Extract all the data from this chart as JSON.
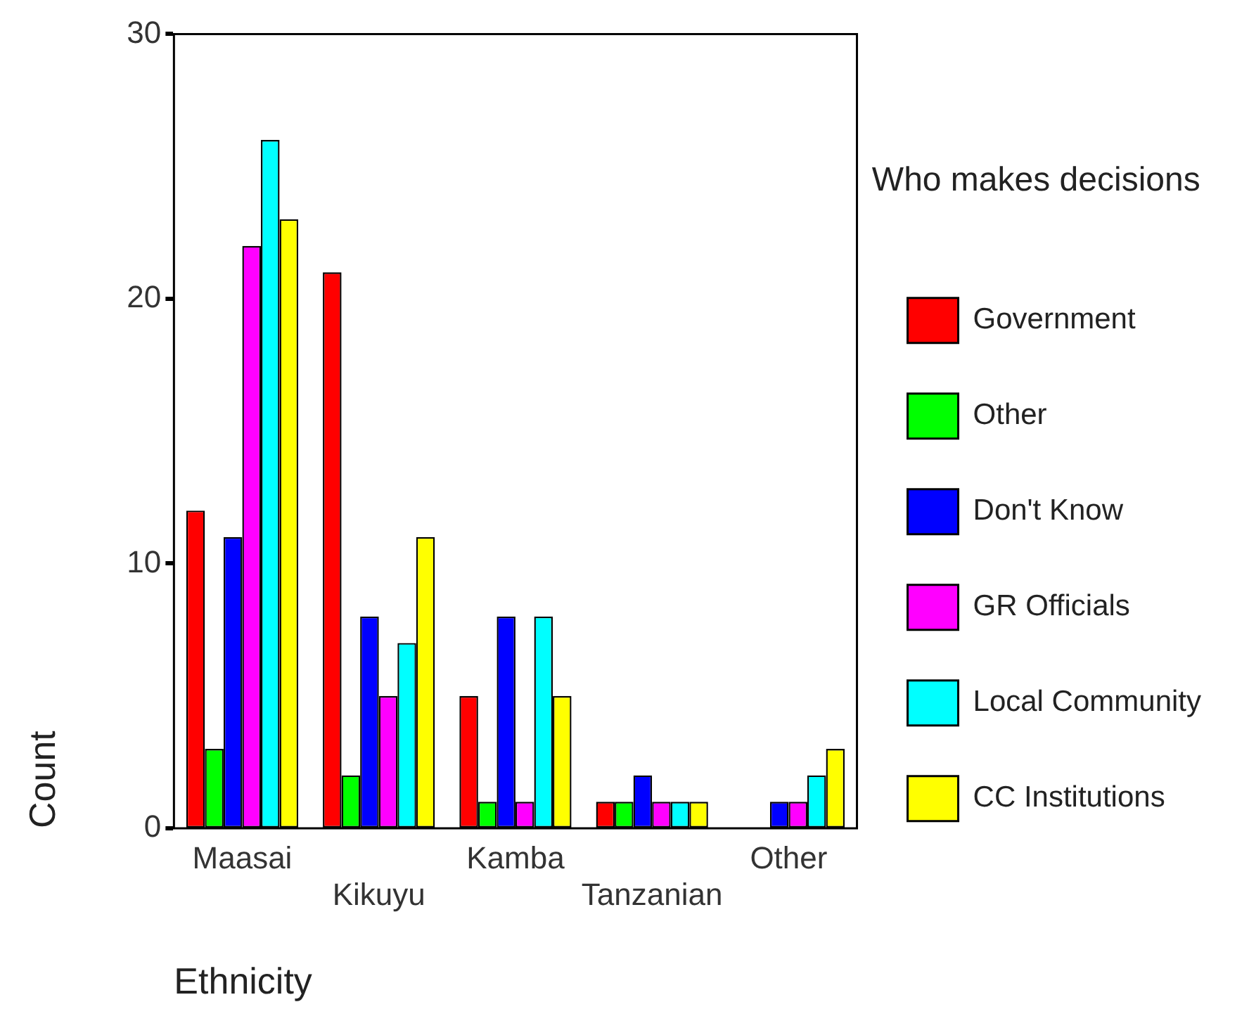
{
  "chart_data": {
    "type": "bar",
    "xlabel": "Ethnicity",
    "ylabel": "Count",
    "legend_title": "Who makes decisions",
    "categories": [
      "Maasai",
      "Kikuyu",
      "Kamba",
      "Tanzanian",
      "Other"
    ],
    "series": [
      {
        "name": "Government",
        "color": "#ff0000",
        "values": [
          12,
          21,
          5,
          1,
          0
        ]
      },
      {
        "name": "Other",
        "color": "#00ff00",
        "values": [
          3,
          2,
          1,
          1,
          0
        ]
      },
      {
        "name": "Don't Know",
        "color": "#0000ff",
        "values": [
          11,
          8,
          8,
          2,
          1
        ]
      },
      {
        "name": "GR Officials",
        "color": "#ff00ff",
        "values": [
          22,
          5,
          1,
          1,
          1
        ]
      },
      {
        "name": "Local Community",
        "color": "#00ffff",
        "values": [
          26,
          7,
          8,
          1,
          2
        ]
      },
      {
        "name": "CC Institutions",
        "color": "#ffff00",
        "values": [
          23,
          11,
          5,
          1,
          3
        ]
      }
    ],
    "ylim": [
      0,
      30
    ],
    "yticks": [
      0,
      10,
      20,
      30
    ],
    "grid": false,
    "legend": "right"
  }
}
